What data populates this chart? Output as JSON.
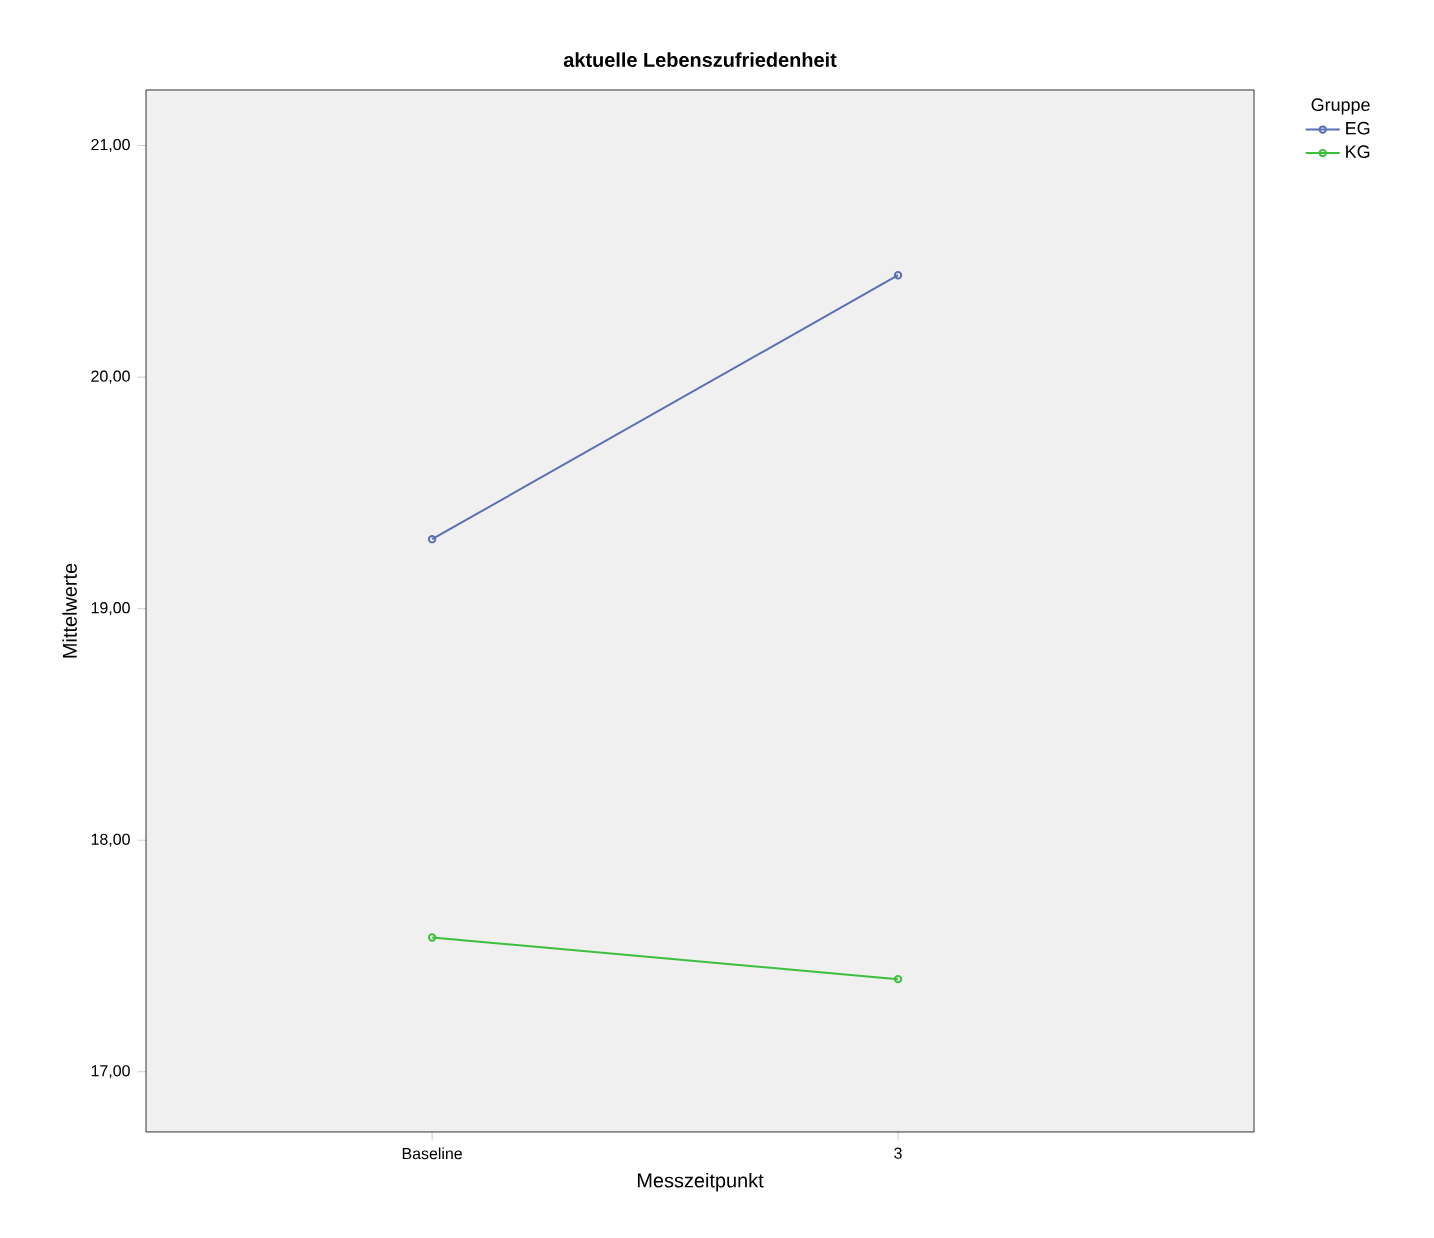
{
  "chart_data": {
    "type": "line",
    "title": "**aktuelle Lebenszufriedenheit**",
    "xlabel": "Messzeitpunkt",
    "ylabel": "Mittelwerte",
    "legend_title": "Gruppe",
    "categories": [
      "Baseline",
      "3"
    ],
    "series": [
      {
        "name": "EG",
        "color": "#5a6eb4",
        "values": [
          19.3,
          20.44
        ]
      },
      {
        "name": "KG",
        "color": "#3cbf3c",
        "values": [
          17.58,
          17.4
        ]
      }
    ],
    "ylim": [
      16.74,
      21.24
    ],
    "yticks": [
      {
        "value": 17,
        "label": "17,00"
      },
      {
        "value": 18,
        "label": "18,00"
      },
      {
        "value": 19,
        "label": "19,00"
      },
      {
        "value": 20,
        "label": "20,00"
      },
      {
        "value": 21,
        "label": "21,00"
      }
    ],
    "marker": "circle",
    "line_style": "solid",
    "legend": "top right",
    "grid": false
  }
}
